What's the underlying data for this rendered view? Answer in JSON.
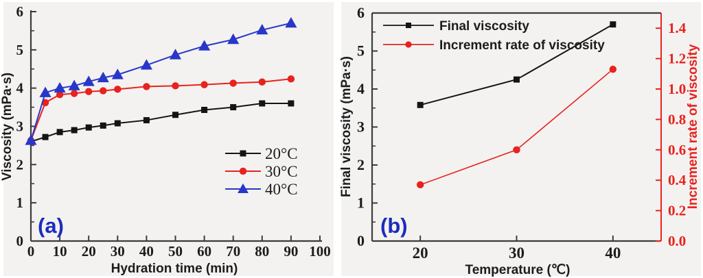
{
  "figure": {
    "background": "#ffffff",
    "panel_background": "#f3f2f0"
  },
  "colors": {
    "axis": "#3c3c3c",
    "tick_text": "#1c1c1c",
    "series_black": "#141414",
    "series_red": "#e8221e",
    "series_blue": "#2836c9",
    "panel_label_blue": "#1b2cbe",
    "right_axis_red": "#e8221e"
  },
  "chart_data": [
    {
      "type": "line",
      "panel_label": "(a)",
      "xlabel": "Hydration time (min)",
      "ylabel": "Viscosity (mPa·s)",
      "xlim": [
        0,
        100
      ],
      "ylim": [
        0,
        6
      ],
      "xticks": [
        0,
        10,
        20,
        30,
        40,
        50,
        60,
        70,
        80,
        90,
        100
      ],
      "yticks": [
        0,
        1,
        2,
        3,
        4,
        5,
        6
      ],
      "y_minor_step": 0.5,
      "grid": false,
      "legend_position": "right-middle",
      "x": [
        0,
        5,
        10,
        15,
        20,
        25,
        30,
        40,
        50,
        60,
        70,
        80,
        90
      ],
      "series": [
        {
          "name": "20°C",
          "marker": "square",
          "color": "#141414",
          "values": [
            2.6,
            2.72,
            2.85,
            2.9,
            2.97,
            3.02,
            3.08,
            3.16,
            3.3,
            3.43,
            3.5,
            3.6,
            3.6
          ]
        },
        {
          "name": "30°C",
          "marker": "circle",
          "color": "#e8221e",
          "values": [
            2.63,
            3.62,
            3.83,
            3.86,
            3.91,
            3.93,
            3.97,
            4.04,
            4.06,
            4.09,
            4.13,
            4.16,
            4.24
          ]
        },
        {
          "name": "40°C",
          "marker": "triangle",
          "color": "#2836c9",
          "values": [
            2.63,
            3.88,
            4.0,
            4.06,
            4.17,
            4.27,
            4.35,
            4.6,
            4.87,
            5.1,
            5.27,
            5.52,
            5.7
          ]
        }
      ]
    },
    {
      "type": "line-dual-axis",
      "panel_label": "(b)",
      "xlabel": "Temperature (℃)",
      "ylabel_left": "Final viscosity (mPa·s)",
      "ylabel_right": "Increment rate of viscosity",
      "xlim": [
        15,
        45
      ],
      "ylim_left": [
        0,
        6
      ],
      "ylim_right": [
        0,
        1.5
      ],
      "xticks": [
        20,
        30,
        40
      ],
      "yticks_left": [
        0,
        1,
        2,
        3,
        4,
        5,
        6
      ],
      "yticks_right": [
        "0.0",
        "0.2",
        "0.4",
        "0.6",
        "0.8",
        "1.0",
        "1.2",
        "1.4"
      ],
      "y_minor_step_left": 0.5,
      "grid": false,
      "legend_position": "top-left",
      "x": [
        20,
        30,
        40
      ],
      "series": [
        {
          "name": "Final viscosity",
          "axis": "left",
          "marker": "square",
          "color": "#141414",
          "values": [
            3.58,
            4.25,
            5.7
          ]
        },
        {
          "name": "Increment rate of viscosity",
          "axis": "right",
          "marker": "circle",
          "color": "#e8221e",
          "values": [
            0.37,
            0.6,
            1.13
          ]
        }
      ]
    }
  ]
}
